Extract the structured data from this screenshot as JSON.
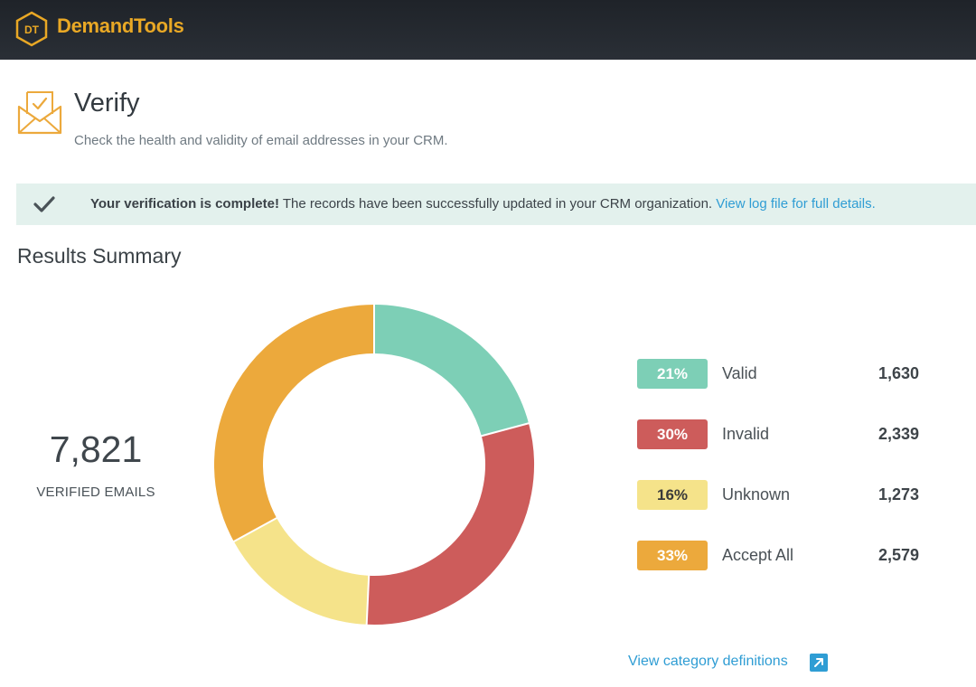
{
  "app": {
    "logo_badge_text": "DT",
    "logo_text": "DemandTools",
    "brand_color": "#e9a825"
  },
  "page": {
    "title": "Verify",
    "subtitle": "Check the health and validity of email addresses in your CRM.",
    "icon": "envelope-check-icon"
  },
  "banner": {
    "icon": "check-icon",
    "bold_text": "Your verification is complete!",
    "message": " The records have been successfully updated in your CRM organization. ",
    "link_text": "View log file for full details."
  },
  "results": {
    "heading": "Results Summary",
    "total": "7,821",
    "total_label": "VERIFIED EMAILS",
    "definitions_link": "View category definitions",
    "definitions_icon": "external-link-icon"
  },
  "chart_data": {
    "type": "pie",
    "categories": [
      "Valid",
      "Invalid",
      "Unknown",
      "Accept All"
    ],
    "values": [
      1630,
      2339,
      1273,
      2579
    ],
    "percent_labels": [
      "21%",
      "30%",
      "16%",
      "33%"
    ],
    "colors": [
      "#7dcfb6",
      "#cd5c5b",
      "#f5e38a",
      "#eca93c"
    ],
    "label_text_colors": [
      "#ffffff",
      "#ffffff",
      "#3a3a3a",
      "#ffffff"
    ],
    "legend_placement": "right"
  }
}
